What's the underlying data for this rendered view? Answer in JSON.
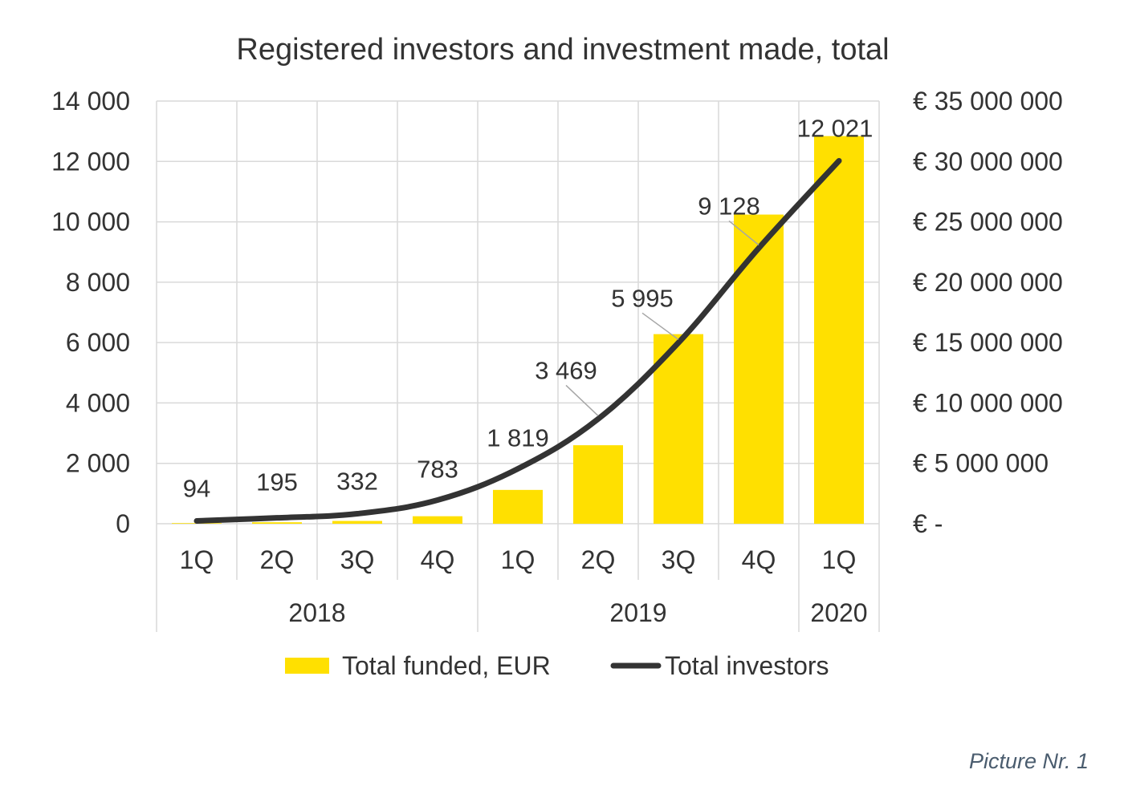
{
  "chart_data": {
    "type": "bar",
    "title": "Registered investors and investment made, total",
    "categories": [
      "1Q",
      "2Q",
      "3Q",
      "4Q",
      "1Q",
      "2Q",
      "3Q",
      "4Q",
      "1Q"
    ],
    "groups": [
      {
        "label": "2018",
        "start": 0,
        "count": 4
      },
      {
        "label": "2019",
        "start": 4,
        "count": 4
      },
      {
        "label": "2020",
        "start": 8,
        "count": 1
      }
    ],
    "series": [
      {
        "name": "Total funded, EUR",
        "type": "bar",
        "axis": "right",
        "color": "#FFE000",
        "values": [
          50000,
          120000,
          230000,
          620000,
          2800000,
          6500000,
          15700000,
          25600000,
          32100000
        ]
      },
      {
        "name": "Total investors",
        "type": "line",
        "axis": "left",
        "color": "#333333",
        "values": [
          94,
          195,
          332,
          783,
          1819,
          3469,
          5995,
          9128,
          12021
        ],
        "labels": [
          "94",
          "195",
          "332",
          "783",
          "1 819",
          "3 469",
          "5 995",
          "9 128",
          "12 021"
        ]
      }
    ],
    "left_axis": {
      "ylim": [
        0,
        14000
      ],
      "ticks": [
        "0",
        "2 000",
        "4 000",
        "6 000",
        "8 000",
        "10 000",
        "12 000",
        "14 000"
      ]
    },
    "right_axis": {
      "ylim": [
        0,
        35000000
      ],
      "ticks": [
        "€ -",
        "€ 5 000 000",
        "€ 10 000 000",
        "€ 15 000 000",
        "€ 20 000 000",
        "€ 25 000 000",
        "€ 30 000 000",
        "€ 35 000 000"
      ]
    },
    "grid": true,
    "legend": "bottom"
  },
  "caption": "Picture Nr. 1"
}
